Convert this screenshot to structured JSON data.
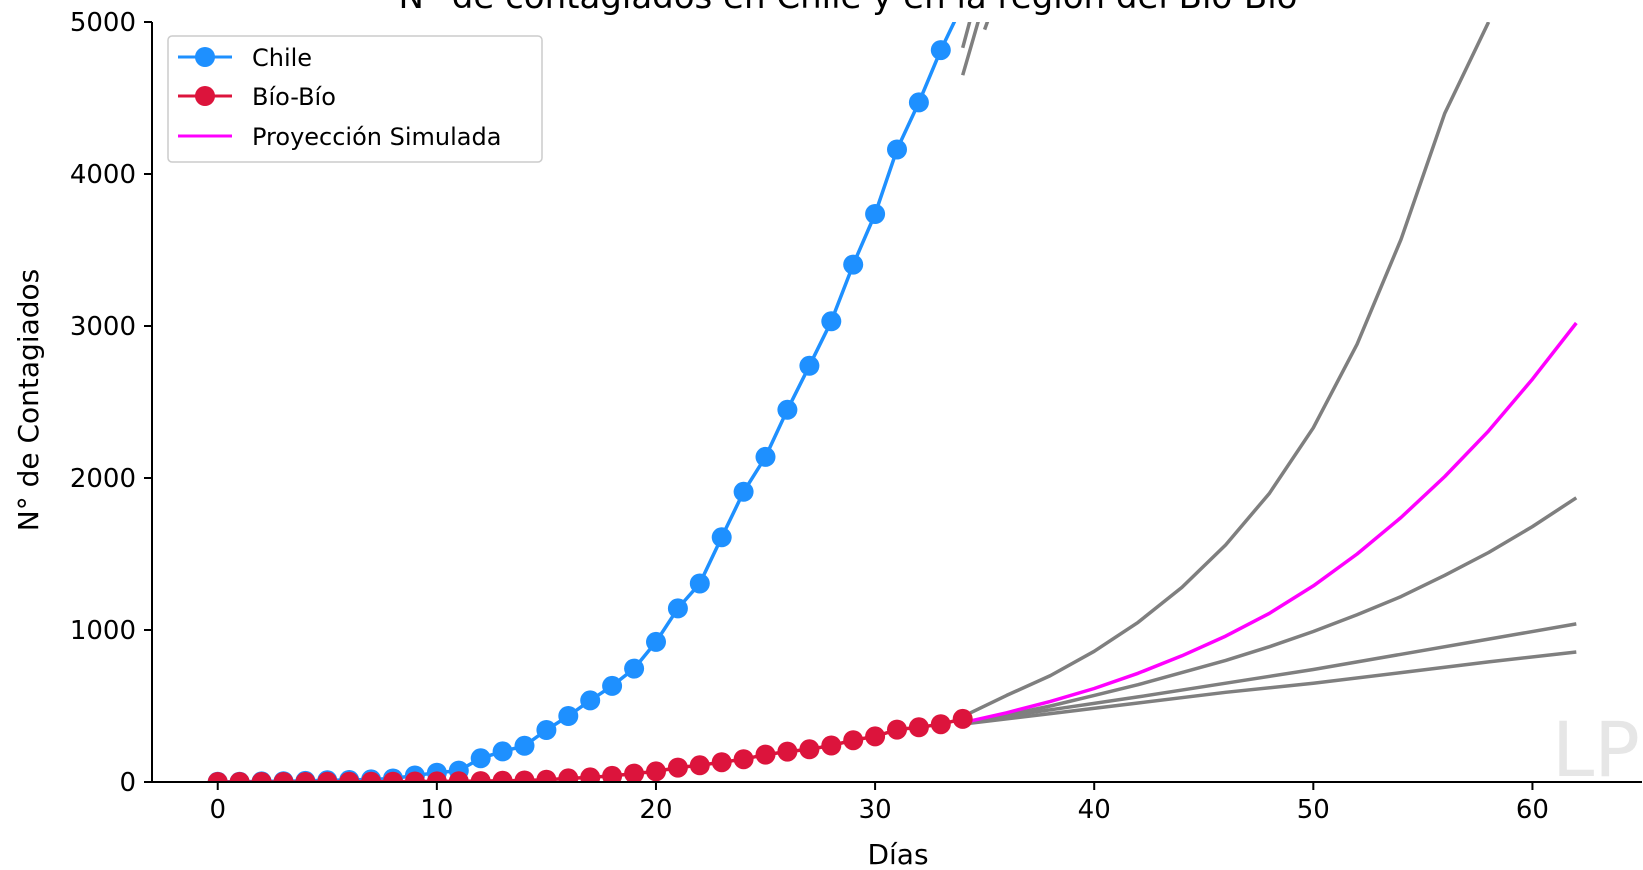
{
  "chart_data": {
    "type": "line",
    "title": "N° de contagiados en Chile y en la región del Bío-Bío",
    "xlabel": "Días",
    "ylabel": "N° de Contagiados",
    "xlim": [
      -3,
      65
    ],
    "ylim": [
      0,
      5000
    ],
    "xticks": [
      0,
      10,
      20,
      30,
      40,
      50,
      60
    ],
    "yticks": [
      0,
      1000,
      2000,
      3000,
      4000,
      5000
    ],
    "grid": false,
    "legend_position": "top-left",
    "watermark": "LP",
    "series": [
      {
        "name": "Chile",
        "color": "#1e90ff",
        "marker": "circle",
        "x": [
          0,
          1,
          2,
          3,
          4,
          5,
          6,
          7,
          8,
          9,
          10,
          11,
          12,
          13,
          14,
          15,
          16,
          17,
          18,
          19,
          20,
          21,
          22,
          23,
          24,
          25,
          26,
          27,
          28,
          29,
          30,
          31,
          32,
          33,
          34,
          35
        ],
        "y": [
          1,
          1,
          4,
          5,
          7,
          11,
          13,
          17,
          23,
          43,
          61,
          75,
          156,
          201,
          238,
          342,
          434,
          537,
          632,
          746,
          922,
          1142,
          1306,
          1610,
          1909,
          2139,
          2449,
          2738,
          3031,
          3404,
          3737,
          4161,
          4471,
          4815,
          5116,
          5546
        ]
      },
      {
        "name": "Bío-Bío",
        "color": "#dc143c",
        "marker": "circle",
        "x": [
          0,
          1,
          2,
          3,
          4,
          5,
          6,
          7,
          8,
          9,
          10,
          11,
          12,
          13,
          14,
          15,
          16,
          17,
          18,
          19,
          20,
          21,
          22,
          23,
          24,
          25,
          26,
          27,
          28,
          29,
          30,
          31,
          32,
          33,
          34
        ],
        "y": [
          0,
          0,
          0,
          0,
          0,
          1,
          1,
          1,
          2,
          3,
          4,
          5,
          6,
          8,
          10,
          15,
          24,
          30,
          40,
          55,
          70,
          95,
          110,
          130,
          150,
          180,
          200,
          215,
          240,
          275,
          300,
          345,
          360,
          380,
          415
        ]
      },
      {
        "name": "Proyección Simulada",
        "color": "#ff00ff",
        "marker": "none",
        "x": [
          34,
          36,
          38,
          40,
          42,
          44,
          46,
          48,
          50,
          52,
          54,
          56,
          58,
          60,
          62
        ],
        "y": [
          390,
          455,
          530,
          615,
          715,
          830,
          960,
          1110,
          1290,
          1500,
          1740,
          2010,
          2310,
          2650,
          3020
        ]
      }
    ],
    "scenario_lines": [
      {
        "color": "#7f7f7f",
        "x": [
          34,
          36,
          38,
          40,
          42,
          44,
          46,
          48,
          50,
          52,
          54,
          56,
          58
        ],
        "y": [
          430,
          570,
          700,
          860,
          1050,
          1280,
          1560,
          1900,
          2330,
          2880,
          3570,
          4400,
          5000
        ]
      },
      {
        "color": "#7f7f7f",
        "x": [
          34,
          36,
          38,
          40,
          42,
          44,
          46,
          48,
          50,
          52,
          54,
          56,
          58,
          60,
          62
        ],
        "y": [
          380,
          440,
          500,
          570,
          640,
          720,
          800,
          890,
          990,
          1100,
          1220,
          1360,
          1510,
          1680,
          1870
        ]
      },
      {
        "color": "#7f7f7f",
        "x": [
          34,
          38,
          42,
          46,
          50,
          54,
          58,
          62
        ],
        "y": [
          390,
          475,
          560,
          650,
          740,
          840,
          940,
          1040
        ]
      },
      {
        "color": "#7f7f7f",
        "x": [
          34,
          38,
          42,
          46,
          50,
          54,
          58,
          62
        ],
        "y": [
          380,
          450,
          520,
          590,
          650,
          720,
          790,
          855
        ]
      },
      {
        "color": "#7f7f7f",
        "x": [
          34,
          34.5,
          35,
          35.5,
          36
        ],
        "y": [
          4650,
          4900,
          5150,
          5400,
          5600
        ]
      },
      {
        "color": "#7f7f7f",
        "x": [
          34,
          34.5,
          35,
          35.5
        ],
        "y": [
          4830,
          5100,
          5350,
          5600
        ]
      },
      {
        "color": "#7f7f7f",
        "x": [
          35,
          35.5,
          36,
          36.5
        ],
        "y": [
          4950,
          5150,
          5350,
          5550
        ]
      }
    ]
  }
}
